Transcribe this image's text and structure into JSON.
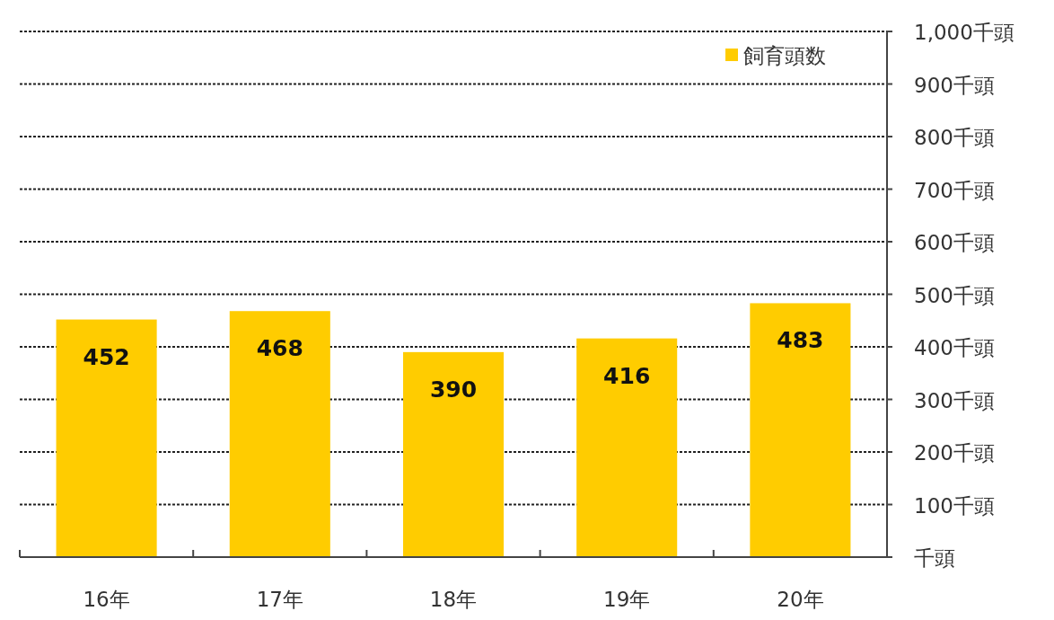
{
  "chart_data": {
    "type": "bar",
    "categories": [
      "16年",
      "17年",
      "18年",
      "19年",
      "20年"
    ],
    "series": [
      {
        "name": "飼育頭数",
        "color": "#ffcc00",
        "values": [
          452,
          468,
          390,
          416,
          483
        ]
      }
    ],
    "ylim": [
      0,
      1000
    ],
    "yticks": [
      {
        "value": 0,
        "label": "千頭"
      },
      {
        "value": 100,
        "label": "100千頭"
      },
      {
        "value": 200,
        "label": "200千頭"
      },
      {
        "value": 300,
        "label": "300千頭"
      },
      {
        "value": 400,
        "label": "400千頭"
      },
      {
        "value": 500,
        "label": "500千頭"
      },
      {
        "value": 600,
        "label": "600千頭"
      },
      {
        "value": 700,
        "label": "700千頭"
      },
      {
        "value": 800,
        "label": "800千頭"
      },
      {
        "value": 900,
        "label": "900千頭"
      },
      {
        "value": 1000,
        "label": "1,000千頭"
      }
    ],
    "grid": "y",
    "legend": "top right",
    "data_labels": true
  }
}
